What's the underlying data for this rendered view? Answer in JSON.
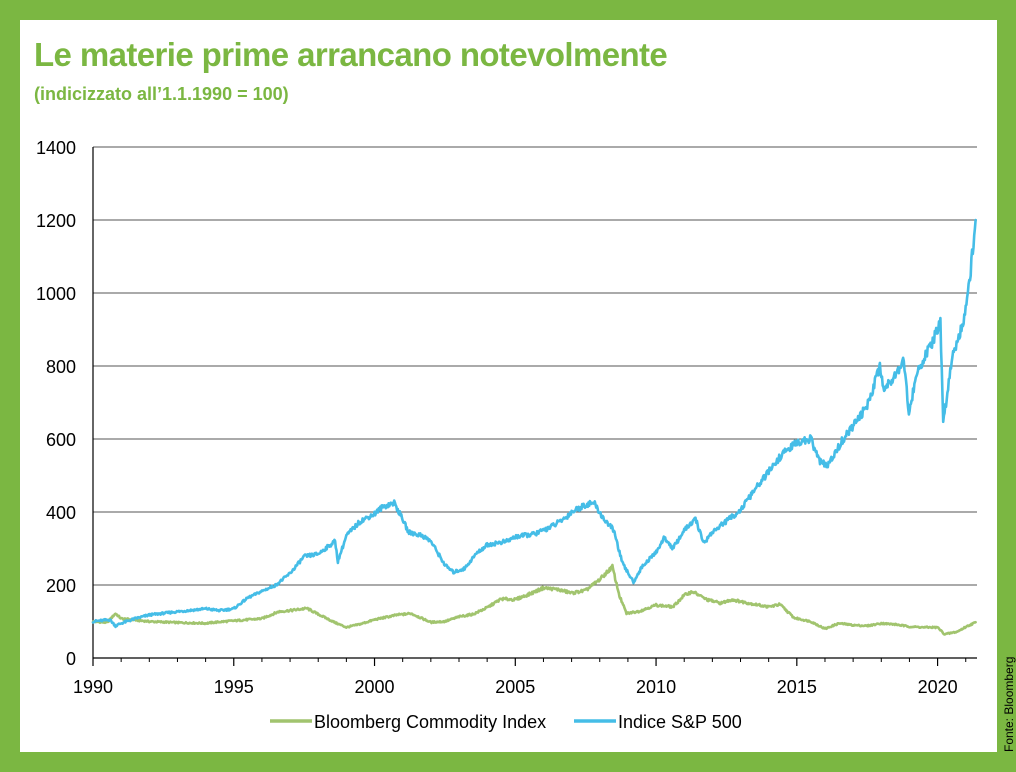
{
  "title": "Le materie prime arrancano notevolmente",
  "subtitle": "(indicizzato all’1.1.1990 = 100)",
  "source": "Fonte: Bloomberg",
  "colors": {
    "background": "#7bb742",
    "title": "#7bb742",
    "commodity": "#a1c46e",
    "sp500": "#45bde7"
  },
  "chart_data": {
    "type": "line",
    "xlim": [
      1990,
      2021.4
    ],
    "ylim": [
      0,
      1400
    ],
    "x_ticks": [
      1990,
      1995,
      2000,
      2005,
      2010,
      2015,
      2020
    ],
    "x_tick_labels": [
      "1990",
      "1995",
      "2000",
      "2005",
      "2010",
      "2015",
      "2020"
    ],
    "y_ticks": [
      0,
      200,
      400,
      600,
      800,
      1000,
      1200,
      1400
    ],
    "y_tick_labels": [
      "0",
      "200",
      "400",
      "600",
      "800",
      "1000",
      "1200",
      "1400"
    ],
    "grid": "horizontal",
    "legend_position": "bottom",
    "series": [
      {
        "name": "Bloomberg Commodity Index",
        "color": "#a1c46e",
        "points": [
          [
            1990,
            100
          ],
          [
            1990.5,
            97
          ],
          [
            1990.8,
            122
          ],
          [
            1991,
            108
          ],
          [
            1992,
            100
          ],
          [
            1993,
            97
          ],
          [
            1994,
            95
          ],
          [
            1994.5,
            99
          ],
          [
            1995,
            102
          ],
          [
            1996,
            108
          ],
          [
            1996.6,
            127
          ],
          [
            1997,
            130
          ],
          [
            1997.6,
            136
          ],
          [
            1998,
            120
          ],
          [
            1998.6,
            97
          ],
          [
            1999,
            84
          ],
          [
            1999.5,
            93
          ],
          [
            2000,
            105
          ],
          [
            2000.8,
            118
          ],
          [
            2001.3,
            122
          ],
          [
            2001.7,
            108
          ],
          [
            2002,
            98
          ],
          [
            2002.5,
            100
          ],
          [
            2003,
            113
          ],
          [
            2003.5,
            120
          ],
          [
            2004,
            138
          ],
          [
            2004.5,
            162
          ],
          [
            2005,
            160
          ],
          [
            2005.5,
            175
          ],
          [
            2006,
            192
          ],
          [
            2006.5,
            188
          ],
          [
            2007,
            178
          ],
          [
            2007.5,
            185
          ],
          [
            2008,
            215
          ],
          [
            2008.45,
            250
          ],
          [
            2008.7,
            170
          ],
          [
            2008.95,
            122
          ],
          [
            2009.4,
            128
          ],
          [
            2010,
            145
          ],
          [
            2010.6,
            140
          ],
          [
            2011,
            172
          ],
          [
            2011.3,
            182
          ],
          [
            2011.8,
            160
          ],
          [
            2012.3,
            150
          ],
          [
            2012.7,
            160
          ],
          [
            2013.3,
            150
          ],
          [
            2014,
            140
          ],
          [
            2014.4,
            147
          ],
          [
            2014.9,
            110
          ],
          [
            2015.5,
            100
          ],
          [
            2016,
            80
          ],
          [
            2016.5,
            95
          ],
          [
            2017,
            90
          ],
          [
            2017.5,
            88
          ],
          [
            2018,
            95
          ],
          [
            2018.5,
            92
          ],
          [
            2019,
            86
          ],
          [
            2019.5,
            84
          ],
          [
            2020,
            84
          ],
          [
            2020.25,
            65
          ],
          [
            2020.7,
            72
          ],
          [
            2021,
            85
          ],
          [
            2021.35,
            98
          ]
        ]
      },
      {
        "name": "Indice S&P 500",
        "color": "#45bde7",
        "points": [
          [
            1990,
            100
          ],
          [
            1990.6,
            105
          ],
          [
            1990.8,
            88
          ],
          [
            1991,
            95
          ],
          [
            1991.5,
            108
          ],
          [
            1992,
            118
          ],
          [
            1993,
            127
          ],
          [
            1994,
            135
          ],
          [
            1994.5,
            130
          ],
          [
            1995,
            135
          ],
          [
            1995.5,
            165
          ],
          [
            1996,
            183
          ],
          [
            1996.5,
            200
          ],
          [
            1997,
            232
          ],
          [
            1997.5,
            278
          ],
          [
            1998,
            285
          ],
          [
            1998.6,
            320
          ],
          [
            1998.7,
            265
          ],
          [
            1999,
            335
          ],
          [
            1999.5,
            375
          ],
          [
            2000,
            395
          ],
          [
            2000.3,
            415
          ],
          [
            2000.7,
            425
          ],
          [
            2001,
            380
          ],
          [
            2001.2,
            345
          ],
          [
            2001.7,
            335
          ],
          [
            2002,
            320
          ],
          [
            2002.5,
            255
          ],
          [
            2002.8,
            235
          ],
          [
            2003.2,
            245
          ],
          [
            2003.6,
            285
          ],
          [
            2004,
            310
          ],
          [
            2004.7,
            320
          ],
          [
            2005,
            332
          ],
          [
            2005.7,
            340
          ],
          [
            2006,
            350
          ],
          [
            2006.4,
            365
          ],
          [
            2006.8,
            385
          ],
          [
            2007,
            400
          ],
          [
            2007.5,
            420
          ],
          [
            2007.8,
            425
          ],
          [
            2008.1,
            385
          ],
          [
            2008.5,
            350
          ],
          [
            2008.8,
            260
          ],
          [
            2009.2,
            208
          ],
          [
            2009.5,
            250
          ],
          [
            2010,
            290
          ],
          [
            2010.3,
            330
          ],
          [
            2010.6,
            300
          ],
          [
            2011,
            350
          ],
          [
            2011.4,
            380
          ],
          [
            2011.7,
            315
          ],
          [
            2012,
            345
          ],
          [
            2012.5,
            375
          ],
          [
            2013,
            405
          ],
          [
            2013.5,
            460
          ],
          [
            2014,
            510
          ],
          [
            2014.5,
            560
          ],
          [
            2015,
            590
          ],
          [
            2015.5,
            600
          ],
          [
            2015.8,
            540
          ],
          [
            2016.1,
            525
          ],
          [
            2016.6,
            595
          ],
          [
            2017,
            635
          ],
          [
            2017.5,
            690
          ],
          [
            2017.95,
            800
          ],
          [
            2018.1,
            735
          ],
          [
            2018.6,
            790
          ],
          [
            2018.8,
            820
          ],
          [
            2018.98,
            670
          ],
          [
            2019.3,
            790
          ],
          [
            2019.8,
            860
          ],
          [
            2020.1,
            920
          ],
          [
            2020.2,
            640
          ],
          [
            2020.5,
            820
          ],
          [
            2020.9,
            920
          ],
          [
            2021,
            960
          ],
          [
            2021.2,
            1080
          ],
          [
            2021.35,
            1200
          ]
        ]
      }
    ]
  }
}
